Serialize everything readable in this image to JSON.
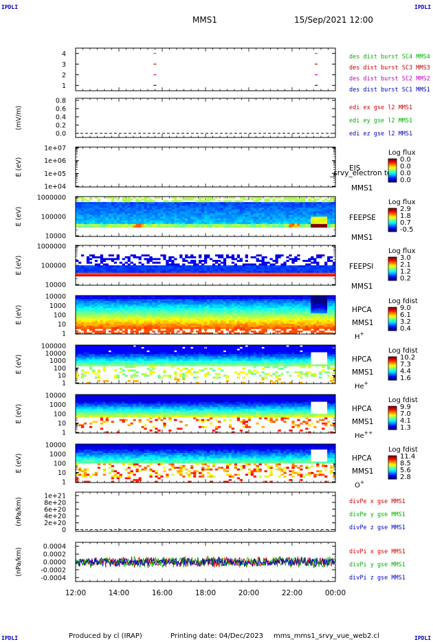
{
  "header": {
    "corner_tl": "IPDLI",
    "corner_tr": "IPDLI",
    "corner_bl": "IPDLI",
    "corner_br": "IPDLI",
    "spacecraft": "MMS1",
    "datetime": "15/Sep/2021 12:00"
  },
  "footer": {
    "produced_by": "Produced by cl (IRAP)",
    "printing_date": "Printing date: 04/Dec/2023",
    "filename": "mms_mms1_srvy_vue_web2.cl"
  },
  "colors": {
    "mms1": "#0000c0",
    "mms2": "#c000c0",
    "mms3": "#c00000",
    "mms4": "#00b000",
    "x": "#d00000",
    "y": "#00b000",
    "z": "#0000c0"
  },
  "chart_data": [
    {
      "id": "des-dist-burst",
      "type": "scatter",
      "yticks": [
        "1",
        "2",
        "3",
        "4"
      ],
      "ylim": [
        0.5,
        4.5
      ],
      "x_hours": [
        12,
        24
      ],
      "series": [
        {
          "name": "des dist burst SC1 MMS1",
          "color": "#0000c0",
          "y": 1,
          "x": [
            15.6,
            23.05
          ]
        },
        {
          "name": "des dist burst SC2 MMS2",
          "color": "#c000c0",
          "y": 2,
          "x": [
            15.6,
            23.05
          ]
        },
        {
          "name": "des dist burst SC3 MMS3",
          "color": "#c00000",
          "y": 3,
          "x": [
            15.6,
            23.05
          ]
        },
        {
          "name": "des dist burst SC4 MMS4",
          "color": "#00b000",
          "y": 4,
          "x": [
            15.6,
            23.05
          ]
        }
      ]
    },
    {
      "id": "edi-e-gse",
      "type": "line",
      "ylabel": "(mV/m)",
      "yticks": [
        "0.0",
        "0.2",
        "0.4",
        "0.6",
        "0.8"
      ],
      "ylim": [
        -0.1,
        0.85
      ],
      "dashed_zero": 0,
      "legend": [
        {
          "name": "edi ex gse l2 MMS1",
          "color": "#d00000"
        },
        {
          "name": "edi ey gse l2 MMS1",
          "color": "#00b000"
        },
        {
          "name": "edi ez gse l2 MMS1",
          "color": "#0000c0"
        }
      ]
    },
    {
      "id": "eis",
      "type": "heatmap",
      "ylabel": "E (eV)",
      "yticks": [
        "1e+04",
        "1e+05",
        "1e+06",
        "1e+07"
      ],
      "log_y": true,
      "labels": [
        "EIS",
        "MMS1"
      ],
      "overlay_text": "_srvy_electron to",
      "colorbar": {
        "title": "Log flux",
        "ticks": [
          "0.0",
          "0.0",
          "0.0",
          "0.0"
        ]
      },
      "profile": "empty"
    },
    {
      "id": "feeps-e",
      "type": "heatmap",
      "ylabel": "E (eV)",
      "yticks": [
        "10000",
        "100000",
        "1000000"
      ],
      "log_y": true,
      "labels": [
        "FEEPSE",
        "MMS1"
      ],
      "colorbar": {
        "title": "Log flux",
        "ticks": [
          "2.9",
          "1.8",
          "0.7",
          "-0.5"
        ]
      },
      "profile": "feepse"
    },
    {
      "id": "feeps-i",
      "type": "heatmap",
      "ylabel": "E (eV)",
      "yticks": [
        "10000",
        "100000",
        "1000000"
      ],
      "log_y": true,
      "labels": [
        "FEEPSI",
        "MMS1"
      ],
      "colorbar": {
        "title": "Log flux",
        "ticks": [
          "3.0",
          "2.1",
          "1.2",
          "0.2"
        ]
      },
      "profile": "feepsi"
    },
    {
      "id": "hpca-h",
      "type": "heatmap",
      "ylabel": "E (eV)",
      "yticks": [
        "1",
        "10",
        "100",
        "1000",
        "10000"
      ],
      "log_y": true,
      "labels": [
        "HPCA",
        "MMS1"
      ],
      "species": "H",
      "charge": "+",
      "colorbar": {
        "title": "Log fdist",
        "ticks": [
          "9.0",
          "6.1",
          "3.2",
          "0.4"
        ]
      },
      "profile": "hplus"
    },
    {
      "id": "hpca-he",
      "type": "heatmap",
      "ylabel": "E (eV)",
      "yticks": [
        "1",
        "10",
        "100",
        "1000",
        "10000",
        "100000"
      ],
      "log_y": true,
      "labels": [
        "HPCA",
        "MMS1"
      ],
      "species": "He",
      "charge": "+",
      "colorbar": {
        "title": "Log fdist",
        "ticks": [
          "10.2",
          "7.3",
          "4.4",
          "1.6"
        ]
      },
      "profile": "heplus"
    },
    {
      "id": "hpca-he2",
      "type": "heatmap",
      "ylabel": "E (eV)",
      "yticks": [
        "1",
        "10",
        "100",
        "1000",
        "10000"
      ],
      "log_y": true,
      "labels": [
        "HPCA",
        "MMS1"
      ],
      "species": "He",
      "charge": "++",
      "colorbar": {
        "title": "Log fdist",
        "ticks": [
          "9.9",
          "7.0",
          "4.1",
          "1.3"
        ]
      },
      "profile": "heplusplus"
    },
    {
      "id": "hpca-o",
      "type": "heatmap",
      "ylabel": "E (eV)",
      "yticks": [
        "1",
        "10",
        "100",
        "1000",
        "10000"
      ],
      "log_y": true,
      "labels": [
        "HPCA",
        "MMS1"
      ],
      "species": "O",
      "charge": "+",
      "colorbar": {
        "title": "Log fdist",
        "ticks": [
          "11.4",
          "8.5",
          "5.6",
          "2.8"
        ]
      },
      "profile": "oplus"
    },
    {
      "id": "divpe",
      "type": "line",
      "ylabel": "(nPa/km)",
      "yticks": [
        "0",
        "2e+20",
        "4e+20",
        "6e+20",
        "8e+20",
        "1e+21"
      ],
      "ylim": [
        -0.05,
        1.1
      ],
      "dashed_zero": 0,
      "legend": [
        {
          "name": "divPe x gse MMS1",
          "color": "#d00000"
        },
        {
          "name": "divPe y gse MMS1",
          "color": "#00b000"
        },
        {
          "name": "divPe z gse MMS1",
          "color": "#0000c0"
        }
      ]
    },
    {
      "id": "divpi",
      "type": "line",
      "ylabel": "(nPa/km)",
      "yticks": [
        "-0.0004",
        "-0.0002",
        "0.0000",
        "0.0002",
        "0.0004"
      ],
      "ylim": [
        -0.0005,
        0.0005
      ],
      "legend": [
        {
          "name": "divPi x gse MMS1",
          "color": "#d00000"
        },
        {
          "name": "divPi y gse MMS1",
          "color": "#00b000"
        },
        {
          "name": "divPi z gse MMS1",
          "color": "#0000c0"
        }
      ],
      "noise_amplitude": 0.00012
    }
  ],
  "time_axis": {
    "ticks": [
      "12:00",
      "14:00",
      "16:00",
      "18:00",
      "20:00",
      "22:00",
      "00:00"
    ],
    "range_hours": [
      12,
      24
    ]
  }
}
